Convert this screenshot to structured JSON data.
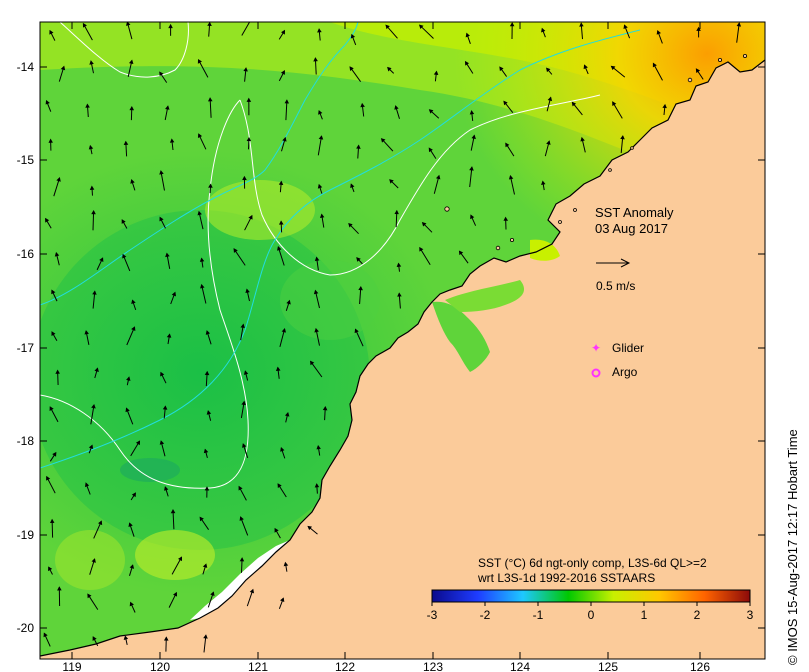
{
  "map": {
    "title_line1": "SST Anomaly",
    "title_line2": "03 Aug 2017",
    "velocity_scale_label": "0.5 m/s",
    "legend": {
      "glider_label": "Glider",
      "argo_label": "Argo",
      "glider_color": "#ff33ff",
      "argo_color": "#ff33ff"
    },
    "colorbar": {
      "caption_line1": "SST (°C) 6d ngt-only comp, L3S-6d QL>=2",
      "caption_line2": "wrt L3S-1d 1992-2016 SSTAARS",
      "ticks": [
        "-3",
        "-2",
        "-1",
        "0",
        "1",
        "2",
        "3"
      ],
      "min": -3,
      "max": 3,
      "colors": [
        "#0a0a8c",
        "#1e3cff",
        "#1ec8ff",
        "#00c800",
        "#c8f000",
        "#ffc800",
        "#ff6400",
        "#8c0a0a"
      ]
    },
    "x_axis_ticks": [
      "119",
      "120",
      "121",
      "122",
      "123",
      "124",
      "125",
      "126"
    ],
    "y_axis_ticks": [
      "-14",
      "-15",
      "-16",
      "-17",
      "-18",
      "-19",
      "-20"
    ],
    "credit": "© IMOS 15-Aug-2017 12:17 Hobart Time",
    "colors": {
      "land": "#fbcb9a",
      "sea_base": "#6fd63a",
      "contour_white": "#ffffff",
      "contour_cyan": "#22dddd"
    }
  }
}
